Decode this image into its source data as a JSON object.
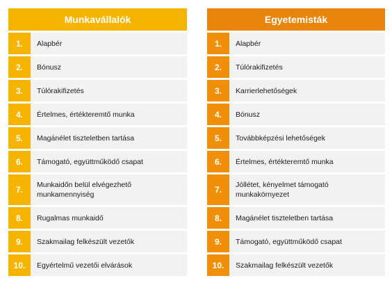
{
  "panels": [
    {
      "title": "Munkavállalók",
      "header_color": "#f5b400",
      "number_color": "#f5b400",
      "items": [
        {
          "num": "1.",
          "label": "Alapbér"
        },
        {
          "num": "2.",
          "label": "Bónusz"
        },
        {
          "num": "3.",
          "label": "Túlórakifizetés"
        },
        {
          "num": "4.",
          "label": "Értelmes, értékteremtő munka"
        },
        {
          "num": "5.",
          "label": "Magánélet tiszteletben tartása"
        },
        {
          "num": "6.",
          "label": "Támogató, együttműködő csapat"
        },
        {
          "num": "7.",
          "label": "Munkaidőn belül elvégezhető munkamennyiség"
        },
        {
          "num": "8.",
          "label": "Rugalmas munkaidő"
        },
        {
          "num": "9.",
          "label": "Szakmailag felkészült vezetők"
        },
        {
          "num": "10.",
          "label": "Egyértelmű vezetői elvárások"
        }
      ]
    },
    {
      "title": "Egyetemisták",
      "header_color": "#e8850c",
      "number_color": "#f0900a",
      "items": [
        {
          "num": "1.",
          "label": "Alapbér"
        },
        {
          "num": "2.",
          "label": "Túlórakifizetés"
        },
        {
          "num": "3.",
          "label": "Karrierlehetőségek"
        },
        {
          "num": "4.",
          "label": "Bónusz"
        },
        {
          "num": "5.",
          "label": "Továbbképzési lehetőségek"
        },
        {
          "num": "6.",
          "label": "Értelmes, értékteremtő munka"
        },
        {
          "num": "7.",
          "label": "Jóllétet, kényelmet támogató munkakörnyezet"
        },
        {
          "num": "8.",
          "label": "Magánélet tiszteletben tartása"
        },
        {
          "num": "9.",
          "label": "Támogató, együttműködő csapat"
        },
        {
          "num": "10.",
          "label": "Szakmailag felkészült vezetők"
        }
      ]
    }
  ]
}
